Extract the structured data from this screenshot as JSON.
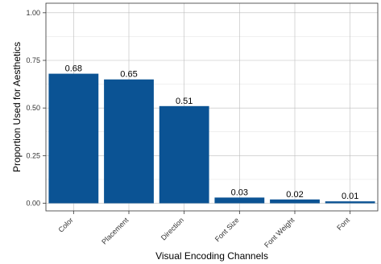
{
  "chart_data": {
    "type": "bar",
    "xlabel": "Visual Encoding Channels",
    "ylabel": "Proportion Used for Aesthetics",
    "categories": [
      "Color",
      "Placement",
      "Direction",
      "Font Size",
      "Font Weight",
      "Font"
    ],
    "values": [
      0.68,
      0.65,
      0.51,
      0.03,
      0.02,
      0.01
    ],
    "data_labels": [
      "0.68",
      "0.65",
      "0.51",
      "0.03",
      "0.02",
      "0.01"
    ],
    "yticks": [
      0.0,
      0.25,
      0.5,
      0.75,
      1.0
    ],
    "ytick_labels": [
      "0.00",
      "0.25",
      "0.50",
      "0.75",
      "1.00"
    ],
    "ylim": [
      -0.04,
      1.05
    ],
    "grid": true,
    "colors": {
      "bar": "#0b5394"
    }
  }
}
